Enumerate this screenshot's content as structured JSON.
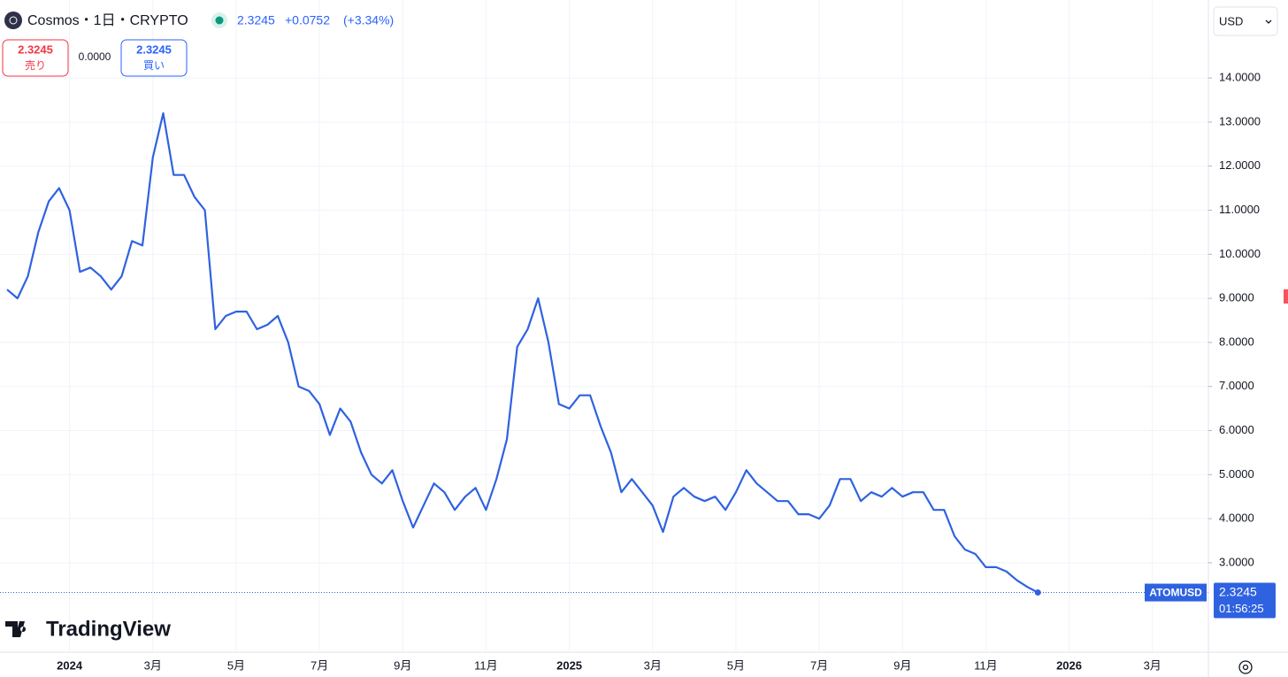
{
  "chart_data": {
    "type": "line",
    "title": "Cosmos・1日・CRYPTO",
    "price": 2.3245,
    "change": "+0.0752",
    "change_pct": "(+3.34%)",
    "sell": {
      "price": 2.3245,
      "label": "売り"
    },
    "spread": "0.0000",
    "buy": {
      "price": 2.3245,
      "label": "買い"
    },
    "currency": "USD",
    "brand": "TradingView",
    "last_price": {
      "symbol": "ATOMUSD",
      "price": 2.3245,
      "countdown": "01:56:25"
    },
    "categories": [
      null,
      null,
      null,
      null,
      null,
      null,
      "2024",
      null,
      null,
      null,
      null,
      null,
      null,
      null,
      "3月",
      null,
      null,
      null,
      null,
      null,
      null,
      null,
      "5月",
      null,
      null,
      null,
      null,
      null,
      null,
      null,
      "7月",
      null,
      null,
      null,
      null,
      null,
      null,
      null,
      "9月",
      null,
      null,
      null,
      null,
      null,
      null,
      null,
      "11月",
      null,
      null,
      null,
      null,
      null,
      null,
      null,
      "2025",
      null,
      null,
      null,
      null,
      null,
      null,
      null,
      "3月",
      null,
      null,
      null,
      null,
      null,
      null,
      null,
      "5月",
      null,
      null,
      null,
      null,
      null,
      null,
      null,
      "7月",
      null,
      null,
      null,
      null,
      null,
      null,
      null,
      "9月",
      null,
      null,
      null,
      null,
      null,
      null,
      null,
      "11月",
      null,
      null,
      null,
      null,
      null,
      null,
      null,
      "2026",
      null,
      null,
      null,
      null,
      null,
      null,
      null,
      "3月",
      null,
      null,
      null,
      null,
      null
    ],
    "series": [
      {
        "name": "ATOMUSD",
        "color": "#2f62e0",
        "values": [
          9.2,
          9.0,
          9.5,
          10.5,
          11.2,
          11.5,
          11.0,
          9.6,
          9.7,
          9.5,
          9.2,
          9.5,
          10.3,
          10.2,
          12.2,
          13.2,
          11.8,
          11.8,
          11.3,
          11.0,
          8.3,
          8.6,
          8.7,
          8.7,
          8.3,
          8.4,
          8.6,
          8.0,
          7.0,
          6.9,
          6.6,
          5.9,
          6.5,
          6.2,
          5.5,
          5.0,
          4.8,
          5.1,
          4.4,
          3.8,
          4.3,
          4.8,
          4.6,
          4.2,
          4.5,
          4.7,
          4.2,
          4.9,
          5.8,
          7.9,
          8.3,
          9.0,
          8.0,
          6.6,
          6.5,
          6.8,
          6.8,
          6.1,
          5.5,
          4.6,
          4.9,
          4.6,
          4.3,
          3.7,
          4.5,
          4.7,
          4.5,
          4.4,
          4.5,
          4.2,
          4.6,
          5.1,
          4.8,
          4.6,
          4.4,
          4.4,
          4.1,
          4.1,
          4.0,
          4.3,
          4.9,
          4.9,
          4.4,
          4.6,
          4.5,
          4.7,
          4.5,
          4.6,
          4.6,
          4.2,
          4.2,
          3.6,
          3.3,
          3.2,
          2.9,
          2.9,
          2.8,
          2.6,
          2.45,
          2.3245,
          null,
          null,
          null,
          null,
          null,
          null,
          null,
          null,
          null,
          null,
          null,
          null,
          null,
          null,
          null,
          null
        ]
      }
    ],
    "ylim": [
      0.97,
      15.77
    ],
    "yticks": [
      {
        "value": 3,
        "label": "3.0000"
      },
      {
        "value": 4,
        "label": "4.0000"
      },
      {
        "value": 5,
        "label": "5.0000"
      },
      {
        "value": 6,
        "label": "6.0000"
      },
      {
        "value": 7,
        "label": "7.0000"
      },
      {
        "value": 8,
        "label": "8.0000"
      },
      {
        "value": 9,
        "label": "9.0000"
      },
      {
        "value": 10,
        "label": "10.0000"
      },
      {
        "value": 11,
        "label": "11.0000"
      },
      {
        "value": 12,
        "label": "12.0000"
      },
      {
        "value": 13,
        "label": "13.0000"
      },
      {
        "value": 14,
        "label": "14.0000"
      }
    ],
    "grid": true
  }
}
